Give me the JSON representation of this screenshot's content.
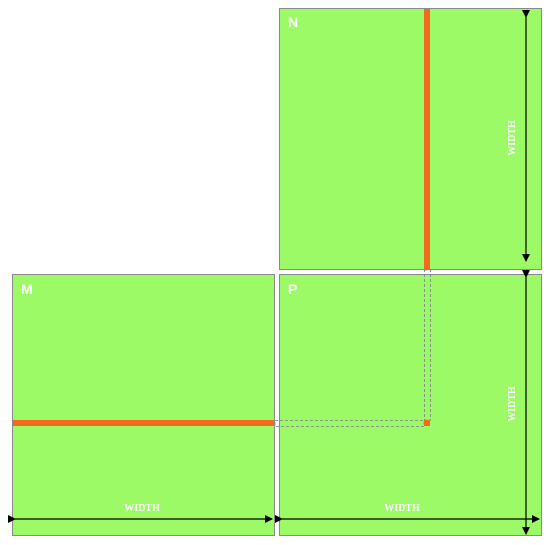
{
  "colors": {
    "matrix_fill": "#9CFA66",
    "matrix_border": "#8A8A8A",
    "highlight": "#F26A1B",
    "guide_dash": "#7A7A9A",
    "arrow": "#000000",
    "label": "#FFFFFF"
  },
  "matrices": {
    "n": {
      "label": "N",
      "dim_label": "WIDTH"
    },
    "m": {
      "label": "M",
      "dim_label": "WIDTH"
    },
    "p": {
      "label": "P",
      "dim_label_bottom": "WIDTH",
      "dim_label_right": "WIDTH"
    }
  }
}
